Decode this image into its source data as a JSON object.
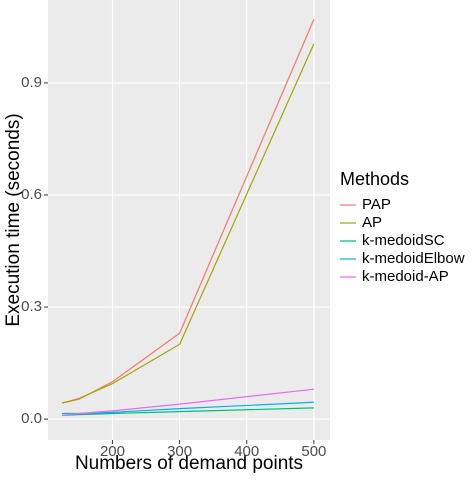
{
  "chart_data": {
    "type": "line",
    "x_label": "Numbers of demand points",
    "y_label": "Execution time (seconds)",
    "legend_title": "Methods",
    "x": [
      125,
      150,
      200,
      300,
      500
    ],
    "series": [
      {
        "name": "PAP",
        "color": "#F8766D",
        "values": [
          0.043,
          0.053,
          0.1,
          0.23,
          1.07
        ]
      },
      {
        "name": "AP",
        "color": "#A3A500",
        "values": [
          0.043,
          0.055,
          0.095,
          0.2,
          1.005
        ]
      },
      {
        "name": "k-medoidSC",
        "color": "#00BF7D",
        "values": [
          0.01,
          0.012,
          0.015,
          0.02,
          0.03
        ]
      },
      {
        "name": "k-medoidElbow",
        "color": "#00B0F6",
        "values": [
          0.015,
          0.015,
          0.018,
          0.028,
          0.045
        ]
      },
      {
        "name": "k-medoid-AP",
        "color": "#E76BF3",
        "values": [
          0.01,
          0.015,
          0.022,
          0.04,
          0.08
        ]
      }
    ],
    "xlim": [
      104,
      524
    ],
    "ylim": [
      -0.056,
      1.122
    ],
    "xticks": [
      200,
      300,
      400,
      500
    ],
    "yticks": [
      {
        "value": 0,
        "label": "0.0"
      },
      0.3,
      0.6,
      0.9
    ],
    "grid": true,
    "legend": "right"
  }
}
